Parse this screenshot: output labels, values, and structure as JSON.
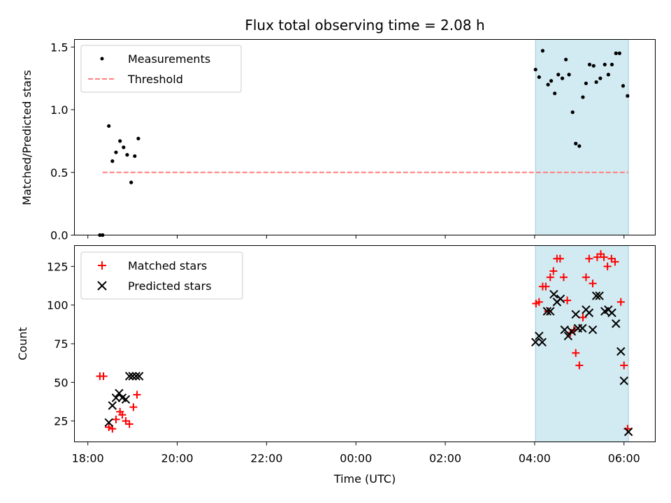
{
  "chart_data": [
    {
      "type": "scatter",
      "panel": "top",
      "title": "Flux total observing time = 2.08 h",
      "xlabel": "",
      "ylabel": "Matched/Predicted stars",
      "xlim": [
        17.7,
        30.7
      ],
      "ylim": [
        0,
        1.56
      ],
      "yticks": [
        0,
        0.5,
        1.0,
        1.5
      ],
      "ytick_labels": [
        "0.0",
        "0.5",
        "1.0",
        "1.5"
      ],
      "shaded_interval": [
        28.02,
        30.1
      ],
      "shade_color": "#add8e6",
      "threshold": {
        "name": "Threshold",
        "value": 0.5,
        "x_range": [
          18.33,
          30.1
        ],
        "color": "#ff7f7f"
      },
      "series": [
        {
          "name": "Measurements",
          "color": "#000000",
          "points": [
            [
              18.27,
              0.0
            ],
            [
              18.33,
              0.0
            ],
            [
              18.47,
              0.87
            ],
            [
              18.55,
              0.59
            ],
            [
              18.63,
              0.66
            ],
            [
              18.72,
              0.75
            ],
            [
              18.8,
              0.7
            ],
            [
              18.88,
              0.64
            ],
            [
              18.97,
              0.42
            ],
            [
              19.05,
              0.63
            ],
            [
              19.13,
              0.77
            ],
            [
              28.02,
              1.32
            ],
            [
              28.1,
              1.26
            ],
            [
              28.18,
              1.47
            ],
            [
              28.3,
              1.2
            ],
            [
              28.37,
              1.23
            ],
            [
              28.45,
              1.13
            ],
            [
              28.53,
              1.28
            ],
            [
              28.62,
              1.25
            ],
            [
              28.7,
              1.4
            ],
            [
              28.77,
              1.28
            ],
            [
              28.85,
              0.98
            ],
            [
              28.92,
              0.73
            ],
            [
              29.0,
              0.71
            ],
            [
              29.08,
              1.1
            ],
            [
              29.15,
              1.21
            ],
            [
              29.23,
              1.36
            ],
            [
              29.32,
              1.35
            ],
            [
              29.38,
              1.22
            ],
            [
              29.47,
              1.25
            ],
            [
              29.57,
              1.36
            ],
            [
              29.65,
              1.28
            ],
            [
              29.73,
              1.36
            ],
            [
              29.82,
              1.45
            ],
            [
              29.9,
              1.45
            ],
            [
              29.98,
              1.19
            ],
            [
              30.08,
              1.11
            ]
          ]
        }
      ],
      "legend": {
        "placement": "top-left",
        "entries": [
          "Measurements",
          "Threshold"
        ]
      }
    },
    {
      "type": "scatter",
      "panel": "bottom",
      "title": "",
      "xlabel": "Time (UTC)",
      "ylabel": "Count",
      "xlim": [
        17.7,
        30.7
      ],
      "ylim": [
        11.5,
        138.5
      ],
      "yticks": [
        25,
        50,
        75,
        100,
        125
      ],
      "ytick_labels": [
        "25",
        "50",
        "75",
        "100",
        "125"
      ],
      "xticks": [
        18,
        20,
        22,
        24,
        26,
        28,
        30
      ],
      "xtick_labels": [
        "18:00",
        "20:00",
        "22:00",
        "00:00",
        "02:00",
        "04:00",
        "06:00"
      ],
      "shaded_interval": [
        28.02,
        30.1
      ],
      "shade_color": "#add8e6",
      "series": [
        {
          "name": "Matched stars",
          "marker": "+",
          "color": "#ff0000",
          "points": [
            [
              18.27,
              54
            ],
            [
              18.35,
              54
            ],
            [
              18.47,
              21
            ],
            [
              18.55,
              20
            ],
            [
              18.63,
              26
            ],
            [
              18.72,
              31
            ],
            [
              18.77,
              29
            ],
            [
              18.85,
              25
            ],
            [
              18.93,
              23
            ],
            [
              19.02,
              34
            ],
            [
              19.1,
              42
            ],
            [
              28.03,
              101
            ],
            [
              28.1,
              102
            ],
            [
              28.18,
              112
            ],
            [
              28.25,
              112
            ],
            [
              28.3,
              96
            ],
            [
              28.35,
              118
            ],
            [
              28.42,
              122
            ],
            [
              28.5,
              130
            ],
            [
              28.57,
              130
            ],
            [
              28.65,
              118
            ],
            [
              28.73,
              103
            ],
            [
              28.8,
              82
            ],
            [
              28.88,
              84
            ],
            [
              28.92,
              69
            ],
            [
              29.0,
              61
            ],
            [
              29.08,
              92
            ],
            [
              29.15,
              118
            ],
            [
              29.22,
              130
            ],
            [
              29.3,
              114
            ],
            [
              29.4,
              131
            ],
            [
              29.48,
              133
            ],
            [
              29.55,
              131
            ],
            [
              29.63,
              125
            ],
            [
              29.72,
              130
            ],
            [
              29.8,
              128
            ],
            [
              29.93,
              102
            ],
            [
              30.0,
              61
            ],
            [
              30.08,
              20
            ]
          ]
        },
        {
          "name": "Predicted stars",
          "marker": "x",
          "color": "#000000",
          "points": [
            [
              18.47,
              24
            ],
            [
              18.55,
              35
            ],
            [
              18.63,
              40
            ],
            [
              18.7,
              43
            ],
            [
              18.77,
              40
            ],
            [
              18.85,
              39
            ],
            [
              18.93,
              54
            ],
            [
              19.0,
              54
            ],
            [
              19.08,
              54
            ],
            [
              19.15,
              54
            ],
            [
              28.02,
              76
            ],
            [
              28.1,
              80
            ],
            [
              28.17,
              76
            ],
            [
              28.28,
              96
            ],
            [
              28.35,
              96
            ],
            [
              28.43,
              107
            ],
            [
              28.5,
              102
            ],
            [
              28.58,
              104
            ],
            [
              28.67,
              84
            ],
            [
              28.75,
              80
            ],
            [
              28.83,
              83
            ],
            [
              28.92,
              94
            ],
            [
              28.97,
              85
            ],
            [
              29.07,
              85
            ],
            [
              29.15,
              97
            ],
            [
              29.22,
              95
            ],
            [
              29.3,
              84
            ],
            [
              29.38,
              106
            ],
            [
              29.45,
              106
            ],
            [
              29.57,
              96
            ],
            [
              29.65,
              97
            ],
            [
              29.73,
              95
            ],
            [
              29.82,
              88
            ],
            [
              29.93,
              70
            ],
            [
              30.0,
              51
            ],
            [
              30.1,
              18
            ]
          ]
        }
      ],
      "legend": {
        "placement": "top-left",
        "entries": [
          "Matched stars",
          "Predicted stars"
        ]
      }
    }
  ]
}
